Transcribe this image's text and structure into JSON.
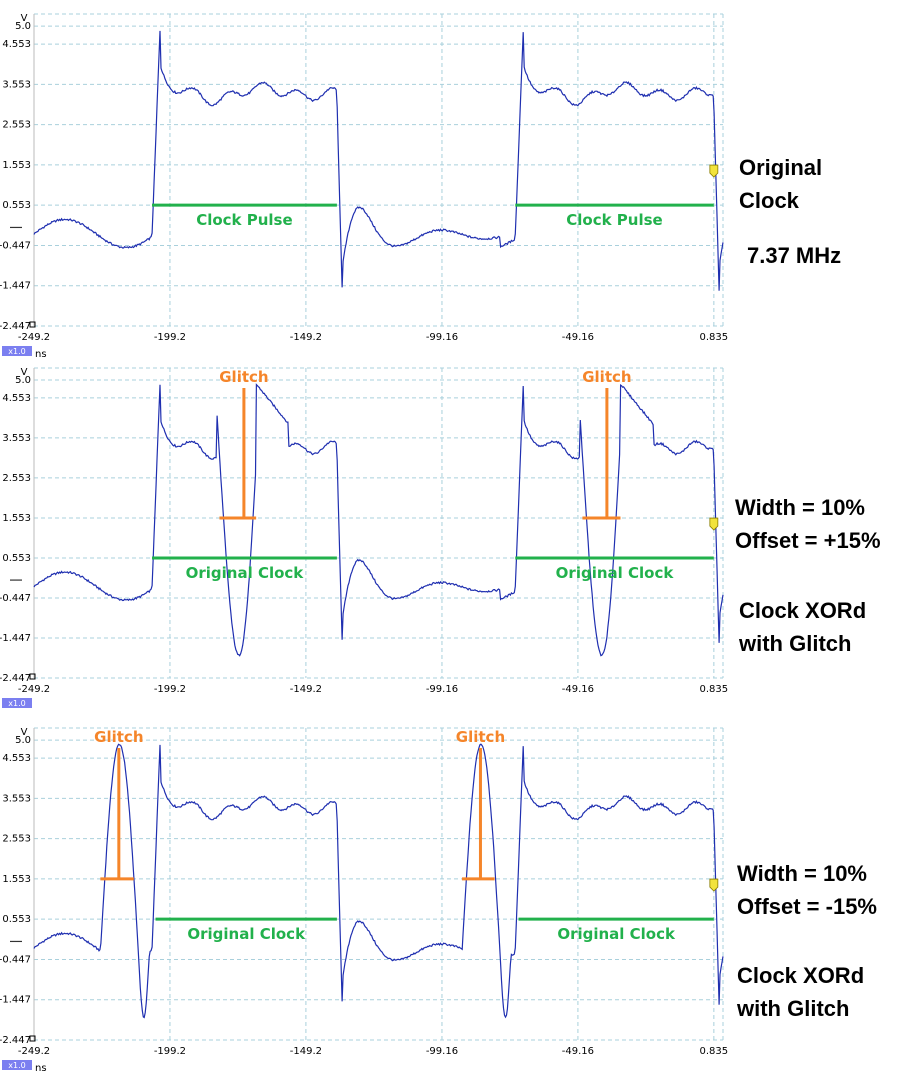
{
  "colors": {
    "trace": "#1f2fb0",
    "grid": "#a9d0dc",
    "annotation_green": "#22b14c",
    "annotation_orange": "#f5852a",
    "cursor": "#f2e33c",
    "axis_text": "#000000",
    "scale_badge": "#7b7ff0"
  },
  "chart_data": [
    {
      "type": "line",
      "ylabel": "V",
      "xlabel": "ns",
      "x_scale_badge": "x1.0",
      "yticks": [
        "5.0",
        "4.553",
        "3.553",
        "2.553",
        "1.553",
        "0.553",
        "-0.447",
        "-1.447",
        "-2.447"
      ],
      "ytick_values": [
        5.0,
        4.553,
        3.553,
        2.553,
        1.553,
        0.553,
        -0.447,
        -1.447,
        -2.447
      ],
      "xticks": [
        "-249.2",
        "-199.2",
        "-149.2",
        "-99.16",
        "-49.16",
        "0.835"
      ],
      "xtick_values": [
        -249.2,
        -199.2,
        -149.2,
        -99.16,
        -49.16,
        0.835
      ],
      "xlim": [
        -249.2,
        4.2
      ],
      "ylim": [
        -2.447,
        5.3
      ],
      "glitch": "none",
      "annotations": [
        {
          "kind": "span",
          "label": "Clock Pulse",
          "x1": -205.8,
          "x2": -137.8,
          "y": 0.553,
          "color": "green"
        },
        {
          "kind": "span",
          "label": "Clock Pulse",
          "x1": -72.2,
          "x2": 0.8,
          "y": 0.553,
          "color": "green"
        }
      ],
      "side_text": [
        "Original",
        "Clock",
        "7.37 MHz"
      ]
    },
    {
      "type": "line",
      "ylabel": "V",
      "xlabel": "",
      "x_scale_badge": "x1.0",
      "yticks": [
        "5.0",
        "4.553",
        "3.553",
        "2.553",
        "1.553",
        "0.553",
        "-0.447",
        "-1.447",
        "-2.447"
      ],
      "ytick_values": [
        5.0,
        4.553,
        3.553,
        2.553,
        1.553,
        0.553,
        -0.447,
        -1.447,
        -2.447
      ],
      "xticks": [
        "-249.2",
        "-199.2",
        "-149.2",
        "-99.16",
        "-49.16",
        "0.835"
      ],
      "xtick_values": [
        -249.2,
        -199.2,
        -149.2,
        -99.16,
        -49.16,
        0.835
      ],
      "xlim": [
        -249.2,
        4.2
      ],
      "ylim": [
        -2.447,
        5.3
      ],
      "glitch": "offset+15",
      "annotations": [
        {
          "kind": "span",
          "label": "Original Clock",
          "x1": -205.8,
          "x2": -137.8,
          "y": 0.553,
          "color": "green"
        },
        {
          "kind": "span",
          "label": "Original Clock",
          "x1": -72.2,
          "x2": 0.8,
          "y": 0.553,
          "color": "green"
        },
        {
          "kind": "glitch",
          "label": "Glitch",
          "x": -172.0,
          "x1": -181.0,
          "x2": -167.5,
          "y": 1.553,
          "color": "orange"
        },
        {
          "kind": "glitch",
          "label": "Glitch",
          "x": -38.5,
          "x2": -33.5,
          "x1": -47.5,
          "y": 1.553,
          "color": "orange"
        }
      ],
      "side_text": [
        "Width = 10%",
        "Offset = +15%",
        "Clock XORd",
        "with Glitch"
      ]
    },
    {
      "type": "line",
      "ylabel": "V",
      "xlabel": "ns",
      "x_scale_badge": "x1.0",
      "yticks": [
        "5.0",
        "4.553",
        "3.553",
        "2.553",
        "1.553",
        "0.553",
        "-0.447",
        "-1.447",
        "-2.447"
      ],
      "ytick_values": [
        5.0,
        4.553,
        3.553,
        2.553,
        1.553,
        0.553,
        -0.447,
        -1.447,
        -2.447
      ],
      "xticks": [
        "-249.2",
        "-199.2",
        "-149.2",
        "-99.16",
        "-49.16",
        "0.835"
      ],
      "xtick_values": [
        -249.2,
        -199.2,
        -149.2,
        -99.16,
        -49.16,
        0.835
      ],
      "xlim": [
        -249.2,
        4.2
      ],
      "ylim": [
        -2.447,
        5.3
      ],
      "glitch": "offset-15",
      "annotations": [
        {
          "kind": "span",
          "label": "Original Clock",
          "x1": -204.5,
          "x2": -137.8,
          "y": 0.553,
          "color": "green"
        },
        {
          "kind": "span",
          "label": "Original Clock",
          "x1": -71.0,
          "x2": 0.8,
          "y": 0.553,
          "color": "green"
        },
        {
          "kind": "glitch",
          "label": "Glitch",
          "x": -218.0,
          "x1": -224.8,
          "x2": -212.5,
          "y": 1.553,
          "color": "orange"
        },
        {
          "kind": "glitch",
          "label": "Glitch",
          "x": -85.0,
          "x1": -91.8,
          "x2": -79.8,
          "y": 1.553,
          "color": "orange"
        }
      ],
      "side_text": [
        "Width = 10%",
        "Offset = -15%",
        "Clock XORd",
        "with Glitch"
      ]
    }
  ]
}
